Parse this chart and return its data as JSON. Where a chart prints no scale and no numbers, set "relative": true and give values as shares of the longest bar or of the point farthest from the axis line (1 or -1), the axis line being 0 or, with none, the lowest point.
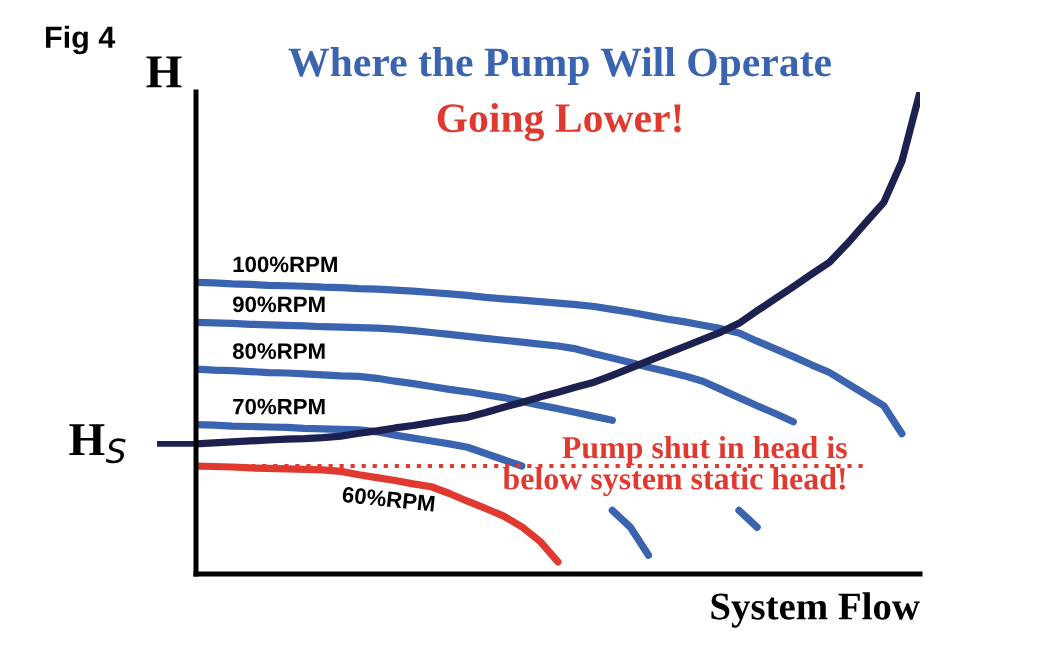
{
  "chart_data": {
    "type": "line",
    "relative": true,
    "title": "Where the Pump Will Operate",
    "subtitle": "Going Lower!",
    "xlabel": "System Flow",
    "ylabel": "H",
    "grid": false,
    "legend": false,
    "marker": "none",
    "line_style": "solid",
    "categories": [
      null,
      null,
      null,
      null,
      null,
      null,
      null,
      null,
      null,
      null,
      null,
      null,
      null,
      null,
      null,
      null,
      null,
      null,
      null,
      null,
      null,
      null,
      null,
      null,
      null,
      null,
      null,
      null,
      null,
      null,
      null,
      null,
      null,
      null,
      null,
      null,
      null,
      null,
      null,
      null,
      null
    ],
    "annotations": [
      "Fig 4",
      "H$_{S}$"
    ],
    "ref_lines": [
      {
        "axis": "y",
        "value": 0.224,
        "label": "Pump shut in head is\nbelow system static head!",
        "color": "#e03a30",
        "line_style": "dotted"
      }
    ],
    "series": [
      {
        "name": "100%RPM",
        "color": "#3a64b0",
        "values": [
          0.605,
          0.604,
          0.602,
          0.601,
          0.599,
          0.598,
          0.597,
          0.595,
          0.594,
          0.592,
          0.591,
          0.589,
          0.587,
          0.584,
          0.581,
          0.578,
          0.574,
          0.571,
          0.568,
          0.565,
          0.562,
          0.559,
          0.555,
          0.549,
          0.543,
          0.536,
          0.529,
          0.523,
          0.516,
          0.509,
          0.5,
          0.483,
          0.467,
          0.451,
          0.434,
          0.418,
          0.395,
          0.372,
          0.349,
          0.291,
          null
        ]
      },
      {
        "name": "90%RPM",
        "color": "#3a64b0",
        "values": [
          0.522,
          0.521,
          0.52,
          0.518,
          0.517,
          0.516,
          0.515,
          0.513,
          0.512,
          0.511,
          0.51,
          0.508,
          0.505,
          0.501,
          0.497,
          0.493,
          0.489,
          0.485,
          0.481,
          0.477,
          0.473,
          0.467,
          0.457,
          0.448,
          0.439,
          0.429,
          0.42,
          0.411,
          0.4,
          0.383,
          0.366,
          0.349,
          0.333,
          0.316,
          null,
          null,
          null,
          null,
          null,
          null,
          null
        ]
      },
      {
        "name": "80%RPM",
        "color": "#3a64b0",
        "values": [
          0.425,
          0.423,
          0.422,
          0.42,
          0.418,
          0.417,
          0.415,
          0.413,
          0.411,
          0.41,
          0.406,
          0.4,
          0.395,
          0.389,
          0.383,
          0.378,
          0.372,
          0.366,
          0.358,
          0.35,
          0.343,
          0.335,
          0.327,
          0.319,
          null,
          null,
          null,
          null,
          null,
          null,
          null,
          null,
          null,
          null,
          null,
          null,
          null,
          null,
          null,
          null,
          null
        ]
      },
      {
        "name": "70%RPM",
        "color": "#3a64b0",
        "values": [
          0.31,
          0.309,
          0.307,
          0.306,
          0.305,
          0.304,
          0.302,
          0.301,
          0.3,
          0.299,
          0.295,
          0.288,
          0.282,
          0.276,
          0.27,
          0.263,
          0.25,
          0.237,
          0.224,
          null,
          null,
          null,
          null,
          null,
          null,
          null,
          null,
          null,
          null,
          null,
          null,
          null,
          null,
          null,
          null,
          null,
          null,
          null,
          null,
          null,
          null
        ]
      },
      {
        "name": "60%RPM",
        "color": "#e03a30",
        "values": [
          0.224,
          0.223,
          0.222,
          0.22,
          0.219,
          0.218,
          0.217,
          0.216,
          0.213,
          0.206,
          0.2,
          0.194,
          0.187,
          0.181,
          0.167,
          0.151,
          0.136,
          0.12,
          0.098,
          0.068,
          0.025,
          null,
          null,
          null,
          null,
          null,
          null,
          null,
          null,
          null,
          null,
          null,
          null,
          null,
          null,
          null,
          null,
          null,
          null,
          null,
          null
        ]
      },
      {
        "color": "#3a64b0",
        "values": [
          null,
          null,
          null,
          null,
          null,
          null,
          null,
          null,
          null,
          null,
          null,
          null,
          null,
          null,
          null,
          null,
          null,
          null,
          null,
          null,
          null,
          null,
          null,
          null,
          null,
          null,
          null,
          null,
          null,
          null,
          0.132,
          0.097,
          null,
          null,
          null,
          null,
          null,
          null,
          null,
          null,
          null
        ]
      },
      {
        "color": "#3a64b0",
        "values": [
          null,
          null,
          null,
          null,
          null,
          null,
          null,
          null,
          null,
          null,
          null,
          null,
          null,
          null,
          null,
          null,
          null,
          null,
          null,
          null,
          null,
          null,
          null,
          0.132,
          0.097,
          0.039,
          null,
          null,
          null,
          null,
          null,
          null,
          null,
          null,
          null,
          null,
          null,
          null,
          null,
          null,
          null
        ]
      },
      {
        "color": "#1c2150",
        "values": [
          0.27,
          0.272,
          0.274,
          0.276,
          0.278,
          0.28,
          0.281,
          0.283,
          0.286,
          0.292,
          0.297,
          0.303,
          0.308,
          0.314,
          0.32,
          0.325,
          0.335,
          0.346,
          0.356,
          0.367,
          0.377,
          0.388,
          0.398,
          0.412,
          0.427,
          0.442,
          0.457,
          0.472,
          0.487,
          0.502,
          0.52,
          0.546,
          0.571,
          0.596,
          0.622,
          0.647,
          0.686,
          0.729,
          0.771,
          0.856,
          1.0
        ]
      }
    ]
  }
}
